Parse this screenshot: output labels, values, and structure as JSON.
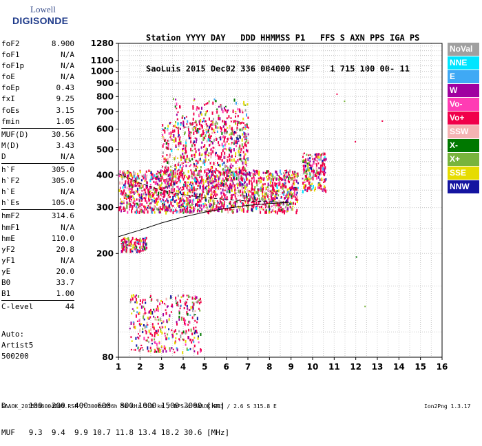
{
  "logo": {
    "line1": "Lowell",
    "line2": "DIGISONDE"
  },
  "header": {
    "labels": "Station YYYY DAY   DDD HHMMSS P1   FFS S AXN PPS IGA PS",
    "values": "SaoLuis 2015 Dec02 336 004000 RSF    1 715 100 00- 11"
  },
  "params": {
    "group1": [
      {
        "name": "foF2",
        "value": "8.900"
      },
      {
        "name": "foF1",
        "value": "N/A"
      },
      {
        "name": "foF1p",
        "value": "N/A"
      },
      {
        "name": "foE",
        "value": "N/A"
      },
      {
        "name": "foEp",
        "value": "0.43"
      },
      {
        "name": "fxI",
        "value": "9.25"
      },
      {
        "name": "foEs",
        "value": "3.15"
      },
      {
        "name": "fmin",
        "value": "1.05"
      }
    ],
    "group2": [
      {
        "name": "MUF(D)",
        "value": "30.56"
      },
      {
        "name": "M(D)",
        "value": "3.43"
      },
      {
        "name": "D",
        "value": "N/A"
      }
    ],
    "group3": [
      {
        "name": "h`F",
        "value": "305.0"
      },
      {
        "name": "h`F2",
        "value": "305.0"
      },
      {
        "name": "h`E",
        "value": "N/A"
      },
      {
        "name": "h`Es",
        "value": "105.0"
      }
    ],
    "group4": [
      {
        "name": "hmF2",
        "value": "314.6"
      },
      {
        "name": "hmF1",
        "value": "N/A"
      },
      {
        "name": "hmE",
        "value": "110.0"
      },
      {
        "name": "yF2",
        "value": "20.8"
      },
      {
        "name": "yF1",
        "value": "N/A"
      },
      {
        "name": "yE",
        "value": "20.0"
      },
      {
        "name": "B0",
        "value": "33.7"
      },
      {
        "name": "B1",
        "value": "1.00"
      }
    ],
    "group5": [
      {
        "name": "C-level",
        "value": "44"
      }
    ]
  },
  "auto": {
    "line1": "Auto:",
    "line2": "Artist5",
    "line3": "500200"
  },
  "legend": [
    {
      "label": "NoVal",
      "color": "#a0a0a0"
    },
    {
      "label": "NNE",
      "color": "#00e5ff"
    },
    {
      "label": "E",
      "color": "#3fa9f5"
    },
    {
      "label": "W",
      "color": "#a000a0"
    },
    {
      "label": "Vo-",
      "color": "#ff3cb4"
    },
    {
      "label": "Vo+",
      "color": "#f0004a"
    },
    {
      "label": "SSW",
      "color": "#f4b3b3"
    },
    {
      "label": "X-",
      "color": "#007800"
    },
    {
      "label": "X+",
      "color": "#78b43c"
    },
    {
      "label": "SSE",
      "color": "#e6dc00"
    },
    {
      "label": "NNW",
      "color": "#1414a0"
    }
  ],
  "bottom": {
    "line1": "D     100  200  400  600  800 1000 1500 3000 [km]",
    "line2": "MUF   9.3  9.4  9.9 10.7 11.8 13.4 18.2 30.6 [MHz]"
  },
  "footer": "SAAOK_2015336004000.RSF / 300fx256h 50 kHz 5.0 km / DPS-4 SAAOK 903 / 2.6 S 315.8 E",
  "version": "Ion2Png 1.3.17",
  "chart_data": {
    "type": "scatter",
    "xlim": [
      1,
      16
    ],
    "ylim": [
      80,
      1280
    ],
    "y_scale": "log",
    "x_ticks": [
      1,
      2,
      3,
      4,
      5,
      6,
      7,
      8,
      9,
      10,
      11,
      12,
      13,
      14,
      15,
      16
    ],
    "y_ticks": [
      80,
      200,
      300,
      400,
      500,
      600,
      700,
      800,
      900,
      1000,
      1100,
      1280
    ],
    "grid": true,
    "traces": [
      {
        "style": "solid",
        "x": [
          1.0,
          2.0,
          3.0,
          4.0,
          5.0,
          6.0,
          7.0,
          8.0,
          8.9
        ],
        "y": [
          232,
          246,
          262,
          276,
          288,
          298,
          306,
          311,
          314
        ]
      },
      {
        "style": "dashed",
        "x": [
          1.0,
          2.0,
          3.0,
          4.0,
          5.0,
          6.0,
          7.0,
          8.0,
          8.9
        ],
        "y": [
          405,
          372,
          350,
          336,
          328,
          322,
          318,
          316,
          315
        ]
      }
    ],
    "echo_regions": [
      {
        "x": [
          1.0,
          9.3
        ],
        "y": [
          290,
          420
        ],
        "density": 1800
      },
      {
        "x": [
          3.0,
          7.0
        ],
        "y": [
          400,
          650
        ],
        "density": 600
      },
      {
        "x": [
          3.5,
          7.0
        ],
        "y": [
          600,
          790
        ],
        "density": 120
      },
      {
        "x": [
          1.1,
          2.3
        ],
        "y": [
          205,
          232
        ],
        "density": 150
      },
      {
        "x": [
          1.5,
          4.8
        ],
        "y": [
          84,
          140
        ],
        "density": 350
      },
      {
        "x": [
          9.5,
          10.6
        ],
        "y": [
          350,
          490
        ],
        "density": 220
      }
    ],
    "isolated_points": [
      {
        "x": 11.1,
        "y": 822
      },
      {
        "x": 11.45,
        "y": 772
      },
      {
        "x": 11.95,
        "y": 540
      },
      {
        "x": 13.2,
        "y": 648
      },
      {
        "x": 12.0,
        "y": 195
      },
      {
        "x": 12.4,
        "y": 126
      }
    ]
  }
}
